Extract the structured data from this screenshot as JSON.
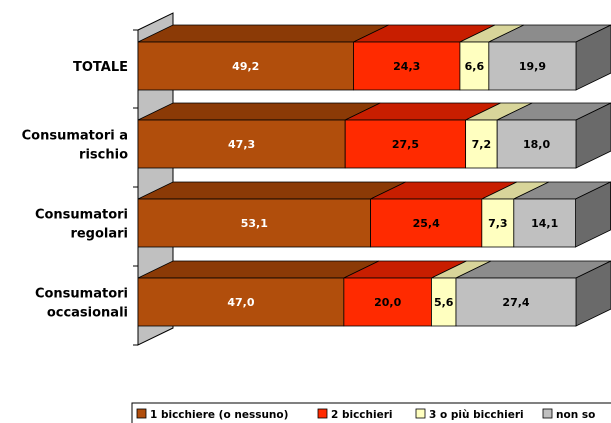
{
  "chart_data": {
    "type": "bar",
    "orientation": "horizontal",
    "stacked": true,
    "three_d": true,
    "categories": [
      [
        "TOTALE"
      ],
      [
        "Consumatori a",
        "rischio"
      ],
      [
        "Consumatori",
        "regolari"
      ],
      [
        "Consumatori",
        "occasionali"
      ]
    ],
    "series": [
      {
        "name": "1 bicchiere (o nessuno)",
        "values": [
          49.2,
          47.3,
          53.1,
          47.0
        ],
        "labels": [
          "49,2",
          "47,3",
          "53,1",
          "47,0"
        ],
        "color": "#B14E0C",
        "top_color": "#8B3A06",
        "label_color": "#ffffff"
      },
      {
        "name": "2 bicchieri",
        "values": [
          24.3,
          27.5,
          25.4,
          20.0
        ],
        "labels": [
          "24,3",
          "27,5",
          "25,4",
          "20,0"
        ],
        "color": "#FF2A00",
        "top_color": "#C81E00",
        "label_color": "#000000"
      },
      {
        "name": "3 o più bicchieri",
        "values": [
          6.6,
          7.2,
          7.3,
          5.6
        ],
        "labels": [
          "6,6",
          "7,2",
          "7,3",
          "5,6"
        ],
        "color": "#FFFFC0",
        "top_color": "#D8D59A",
        "label_color": "#000000"
      },
      {
        "name": "non so",
        "values": [
          19.9,
          18.0,
          14.1,
          27.4
        ],
        "labels": [
          "19,9",
          "18,0",
          "14,1",
          "27,4"
        ],
        "color": "#C0C0C0",
        "top_color": "#8C8C8C",
        "label_color": "#000000"
      }
    ],
    "xlim": [
      0,
      100
    ],
    "legend": "bottom",
    "grid": false,
    "wall_color": "#C0C0C0"
  }
}
